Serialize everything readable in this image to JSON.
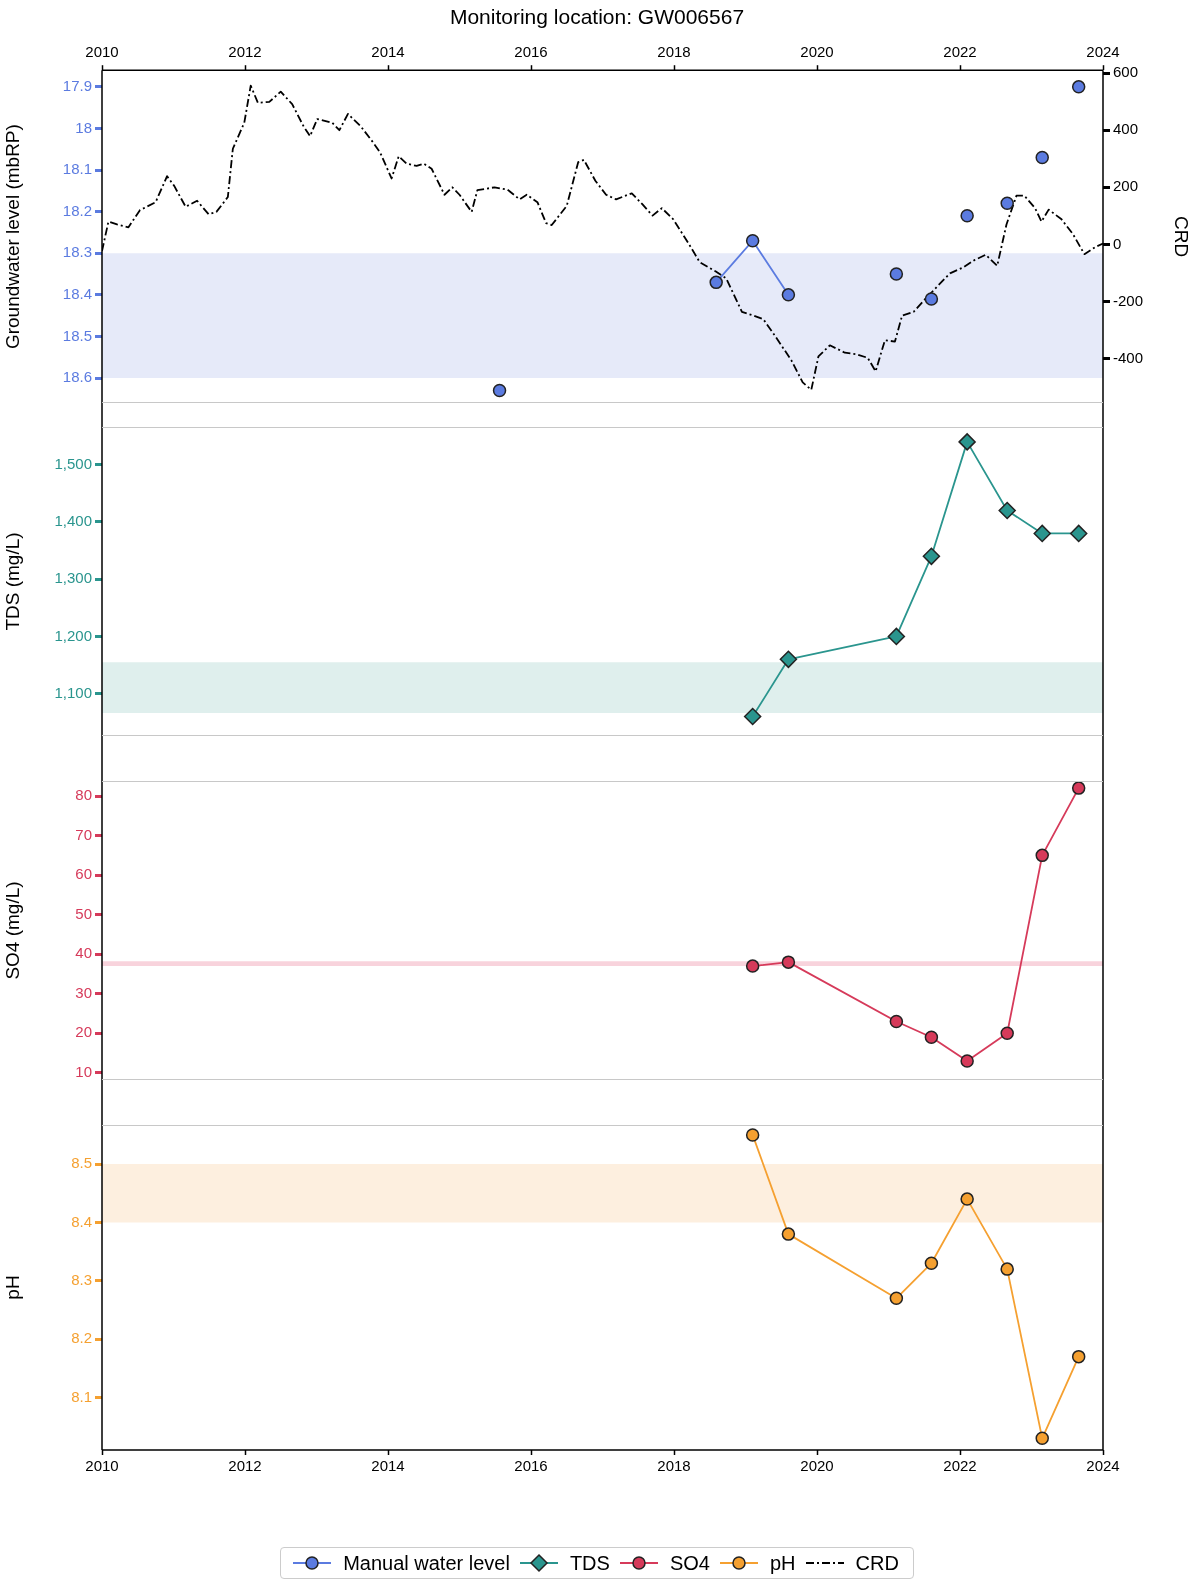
{
  "chart_data": [
    {
      "type": "line",
      "title": "Monitoring location: GW006567",
      "ylabel": "Groundwater level (mbRP)",
      "y2label": "CRD",
      "xlim": [
        2010,
        2024
      ],
      "xticks": [
        2010,
        2012,
        2014,
        2016,
        2018,
        2020,
        2022,
        2024
      ],
      "ylim": [
        18.66,
        17.86
      ],
      "yticks": [
        17.9,
        18,
        18.1,
        18.2,
        18.3,
        18.4,
        18.5,
        18.6
      ],
      "y2lim": [
        -555,
        610
      ],
      "y2ticks": [
        -400,
        -200,
        0,
        200,
        400,
        600
      ],
      "grid": false,
      "legend": "bottom",
      "bands": [
        {
          "axis": "y",
          "from": 18.3,
          "to": 18.6,
          "color": "#e6eaf9"
        }
      ],
      "series": [
        {
          "name": "Manual water level",
          "color": "#5b7be0",
          "marker": "circle",
          "x": [
            2015.56,
            2017.0,
            2018.59,
            2019.1,
            2019.6,
            2020.4,
            2021.11,
            2021.35,
            2021.6,
            2021.85,
            2022.1,
            2022.4,
            2022.66,
            2022.9,
            2023.15,
            2023.4,
            2023.66
          ],
          "values": [
            18.63,
            null,
            18.37,
            18.27,
            18.4,
            null,
            18.35,
            null,
            18.41,
            null,
            18.21,
            null,
            18.18,
            null,
            18.07,
            null,
            17.9
          ]
        },
        {
          "name": "CRD",
          "color": "#000000",
          "marker": "none",
          "line_style": "dashdot",
          "axis": "y2",
          "x": [
            2010.0,
            2010.09,
            2010.21,
            2010.37,
            2010.53,
            2010.75,
            2010.91,
            2011.01,
            2011.17,
            2011.33,
            2011.49,
            2011.6,
            2011.76,
            2011.83,
            2011.99,
            2012.08,
            2012.18,
            2012.34,
            2012.5,
            2012.66,
            2012.82,
            2012.91,
            2013.01,
            2013.22,
            2013.32,
            2013.44,
            2013.62,
            2013.78,
            2013.89,
            2014.05,
            2014.15,
            2014.26,
            2014.4,
            2014.5,
            2014.61,
            2014.79,
            2014.9,
            2015.0,
            2015.17,
            2015.25,
            2015.49,
            2015.67,
            2015.84,
            2015.94,
            2016.09,
            2016.21,
            2016.29,
            2016.5,
            2016.66,
            2016.74,
            2016.9,
            2017.05,
            2017.19,
            2017.41,
            2017.56,
            2017.7,
            2017.83,
            2017.99,
            2018.2,
            2018.36,
            2018.58,
            2018.73,
            2018.95,
            2019.11,
            2019.25,
            2019.41,
            2019.64,
            2019.8,
            2019.92,
            2020.02,
            2020.18,
            2020.39,
            2020.55,
            2020.71,
            2020.82,
            2020.95,
            2021.09,
            2021.19,
            2021.35,
            2021.54,
            2021.69,
            2021.86,
            2022.04,
            2022.2,
            2022.36,
            2022.52,
            2022.65,
            2022.79,
            2022.9,
            2023.05,
            2023.14,
            2023.24,
            2023.42,
            2023.58,
            2023.74,
            2023.9,
            2024.0
          ],
          "values": [
            -23,
            80,
            70,
            60,
            120,
            148,
            239,
            205,
            132,
            153,
            106,
            114,
            166,
            335,
            426,
            556,
            496,
            499,
            535,
            491,
            413,
            379,
            439,
            426,
            400,
            457,
            413,
            361,
            322,
            231,
            309,
            283,
            275,
            283,
            265,
            174,
            200,
            174,
            114,
            190,
            200,
            192,
            158,
            174,
            148,
            75,
            68,
            135,
            288,
            296,
            223,
            174,
            158,
            179,
            140,
            101,
            127,
            88,
            5,
            -62,
            -94,
            -119,
            -236,
            -249,
            -262,
            -319,
            -405,
            -483,
            -509,
            -392,
            -353,
            -379,
            -384,
            -397,
            -444,
            -335,
            -340,
            -249,
            -236,
            -184,
            -145,
            -101,
            -81,
            -55,
            -36,
            -75,
            70,
            171,
            171,
            127,
            80,
            122,
            88,
            36,
            -34,
            -8,
            3
          ]
        }
      ]
    },
    {
      "type": "line",
      "ylabel": "TDS (mg/L)",
      "xlim": [
        2010,
        2024
      ],
      "ylim": [
        1026,
        1566
      ],
      "yticks": [
        {
          "value": 1100,
          "label": "1,100"
        },
        {
          "value": 1200,
          "label": "1,200"
        },
        {
          "value": 1300,
          "label": "1,300"
        },
        {
          "value": 1400,
          "label": "1,400"
        },
        {
          "value": 1500,
          "label": "1,500"
        }
      ],
      "tick_labels": "y",
      "grid": false,
      "legend": "bottom",
      "bands": [
        {
          "axis": "y",
          "from": 1066,
          "to": 1155,
          "color": "#dfefed"
        }
      ],
      "series": [
        {
          "name": "TDS",
          "color": "#2a958e",
          "marker": "diamond",
          "x": [
            2019.1,
            2019.6,
            2021.11,
            2021.6,
            2022.1,
            2022.66,
            2023.15,
            2023.66
          ],
          "values": [
            1060,
            1160,
            1200,
            1340,
            1540,
            1420,
            1380,
            1380
          ]
        }
      ]
    },
    {
      "type": "line",
      "ylabel": "SO4 (mg/L)",
      "xlim": [
        2010,
        2024
      ],
      "ylim": [
        8.2,
        83.8
      ],
      "yticks": [
        10,
        20,
        30,
        40,
        50,
        60,
        70,
        80
      ],
      "tick_labels": "y",
      "grid": false,
      "legend": "bottom",
      "bands": [
        {
          "axis": "y",
          "from": 37,
          "to": 38.2,
          "color": "#f8d3dc"
        }
      ],
      "series": [
        {
          "name": "SO4",
          "color": "#d63a5a",
          "marker": "circle",
          "x": [
            2019.1,
            2019.6,
            2021.11,
            2021.6,
            2022.1,
            2022.66,
            2023.15,
            2023.66
          ],
          "values": [
            37,
            38,
            23,
            19,
            13,
            20,
            65,
            82
          ]
        }
      ]
    },
    {
      "type": "line",
      "ylabel": "pH",
      "xlim": [
        2010,
        2024
      ],
      "xticks": [
        2010,
        2012,
        2014,
        2016,
        2018,
        2020,
        2022,
        2024
      ],
      "ylim": [
        8.01,
        8.567
      ],
      "yticks": [
        8.1,
        8.2,
        8.3,
        8.4,
        8.5
      ],
      "grid": false,
      "legend": "bottom",
      "bands": [
        {
          "axis": "y",
          "from": 8.4,
          "to": 8.5,
          "color": "#fdefdf"
        }
      ],
      "series": [
        {
          "name": "pH",
          "color": "#f5a030",
          "marker": "circle",
          "x": [
            2019.1,
            2019.6,
            2021.11,
            2021.6,
            2022.1,
            2022.66,
            2023.15,
            2023.66
          ],
          "values": [
            8.55,
            8.38,
            8.27,
            8.33,
            8.44,
            8.32,
            8.03,
            8.17
          ]
        }
      ]
    }
  ]
}
